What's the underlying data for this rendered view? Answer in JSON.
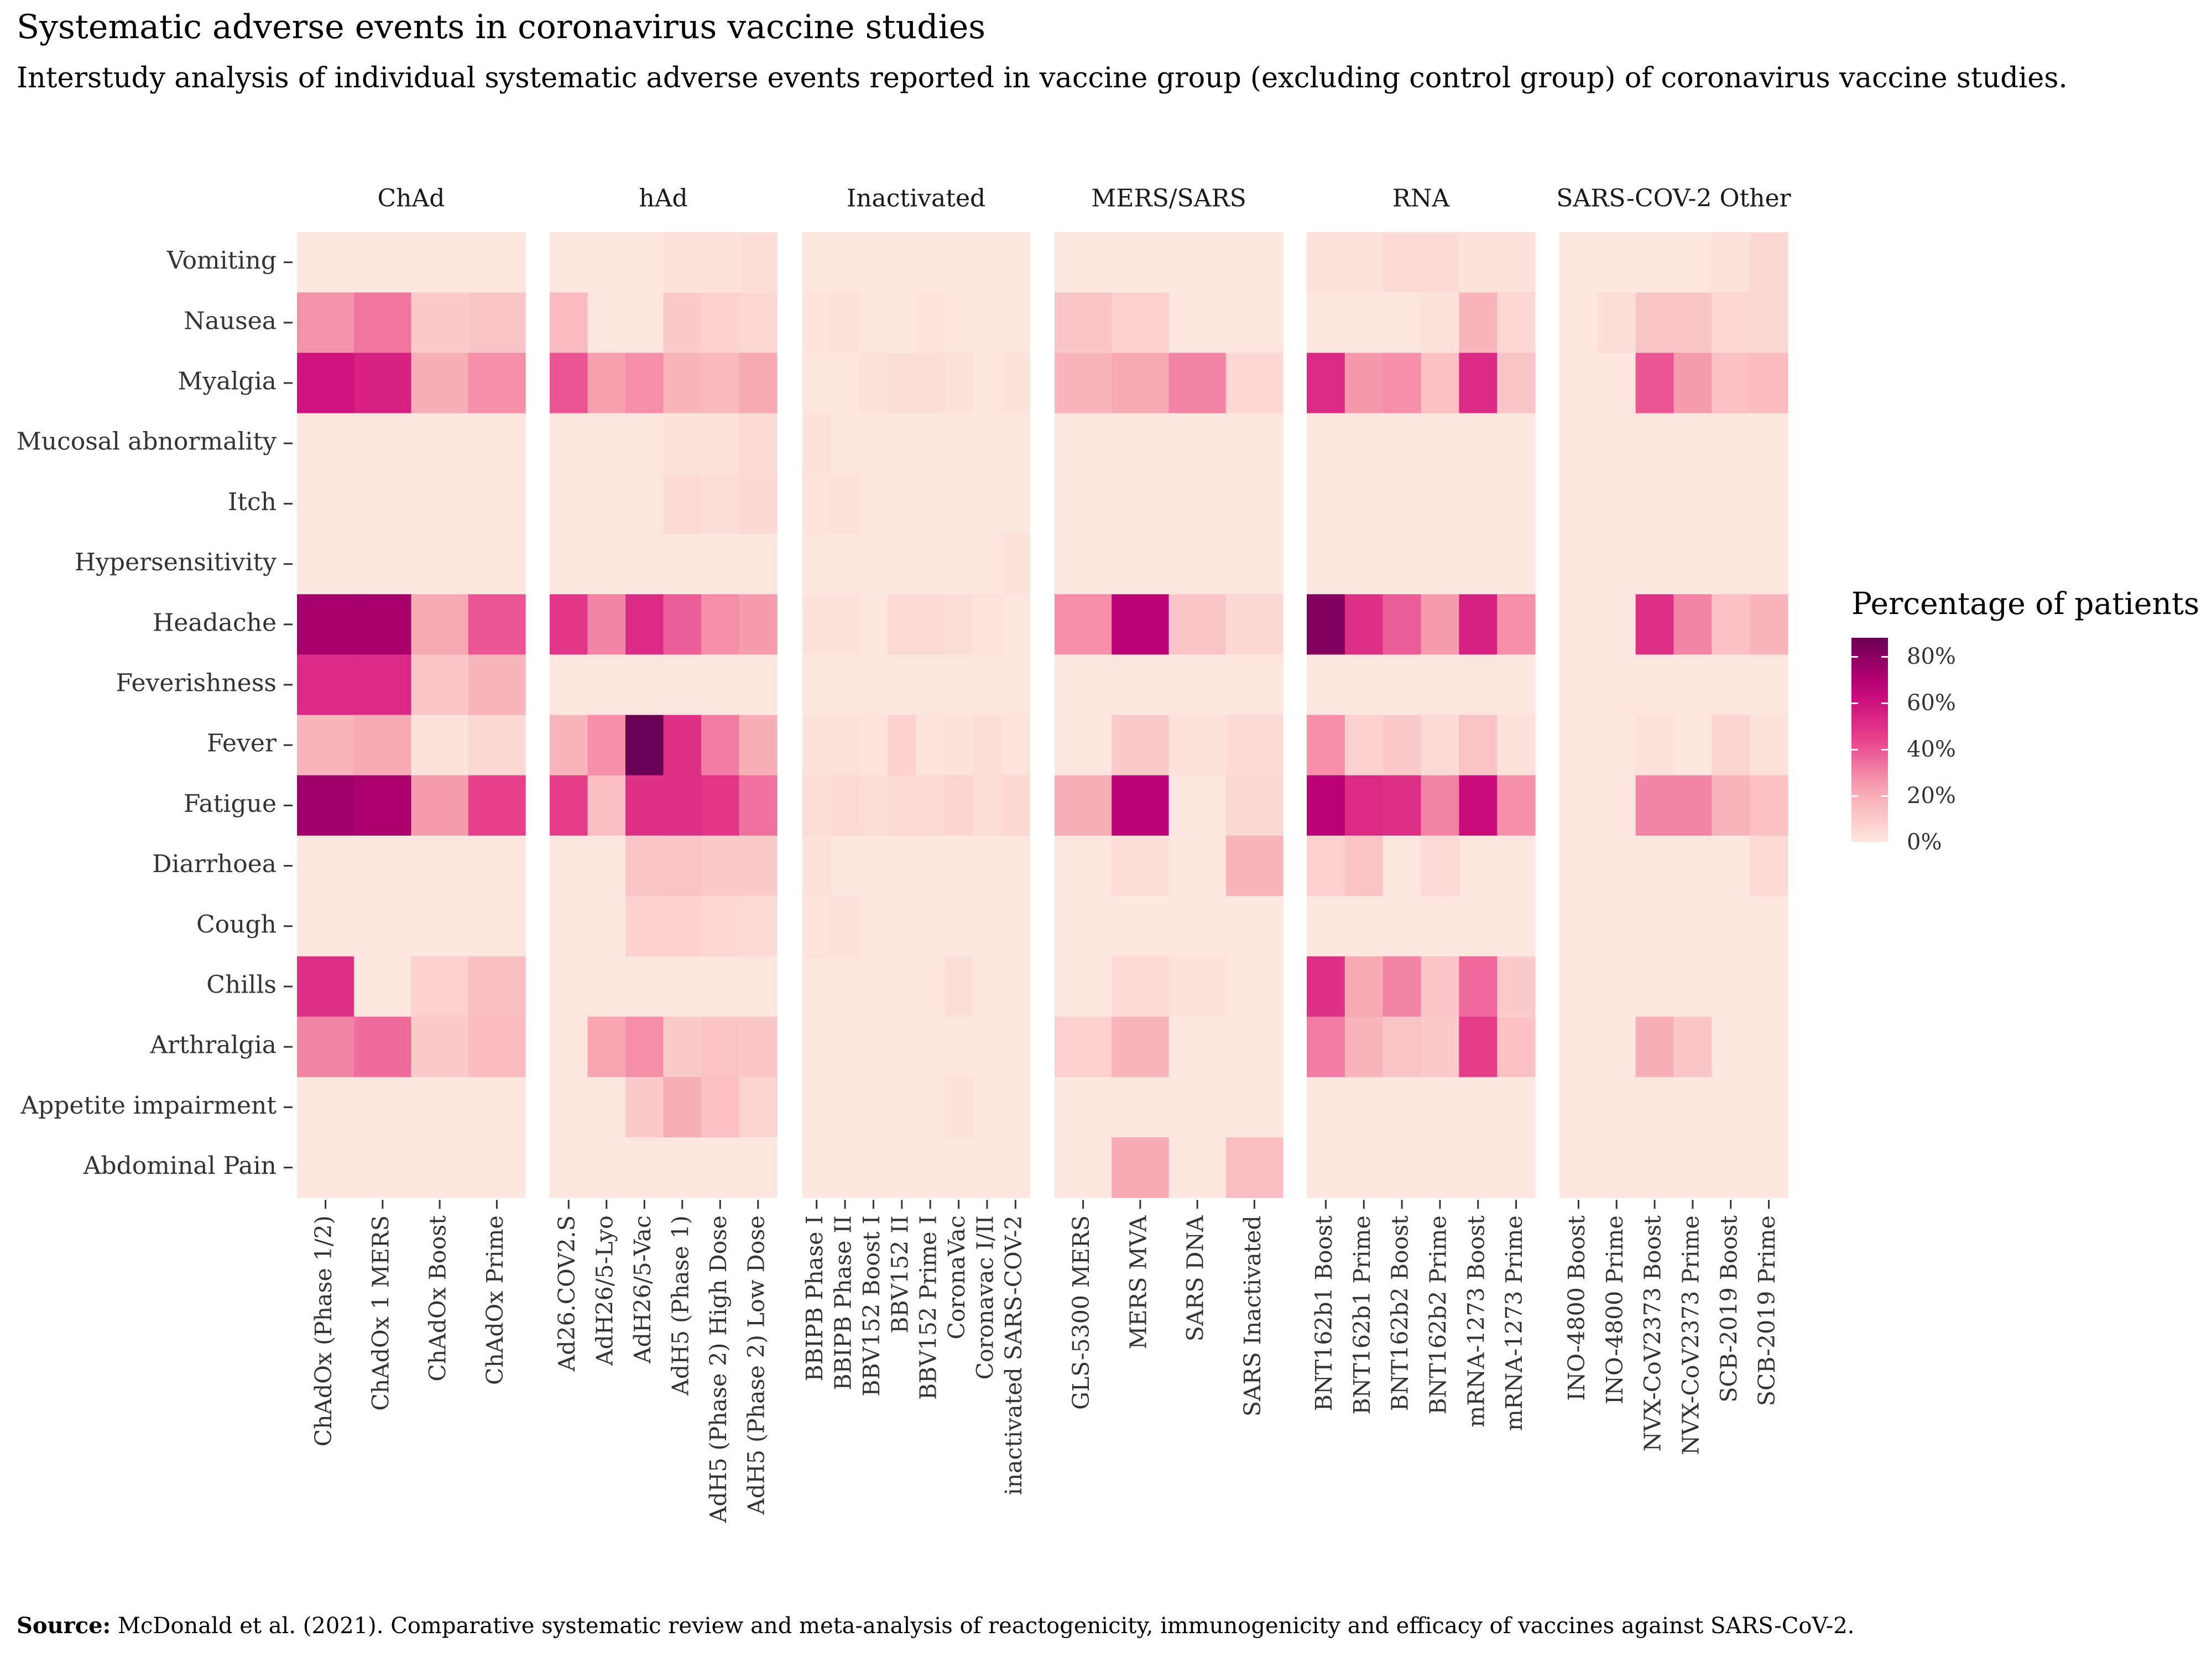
{
  "chart_data": {
    "type": "heatmap",
    "title": "Systematic adverse events in coronavirus vaccine studies",
    "subtitle": "Interstudy analysis of individual systematic adverse events reported in vaccine group (excluding control group) of coronavirus vaccine studies.",
    "source_label": "Source:",
    "source_text": "McDonald et al. (2021). Comparative systematic review and meta-analysis of reactogenicity, immunogenicity and efficacy of vaccines against SARS-CoV-2.",
    "legend": {
      "title": "Percentage of patients",
      "ticks": [
        0,
        20,
        40,
        60,
        80
      ],
      "tick_labels": [
        "0%",
        "20%",
        "40%",
        "60%",
        "80%"
      ],
      "range": [
        0,
        88
      ],
      "color_low": "#fde6df",
      "color_high": "#6a0055"
    },
    "events": [
      "Vomiting",
      "Nausea",
      "Myalgia",
      "Mucosal abnormality",
      "Itch",
      "Hypersensitivity",
      "Headache",
      "Feverishness",
      "Fever",
      "Fatigue",
      "Diarrhoea",
      "Cough",
      "Chills",
      "Arthralgia",
      "Appetite impairment",
      "Abdominal Pain"
    ],
    "panels": [
      {
        "name": "ChAd",
        "studies": [
          "ChAdOx (Phase 1/2)",
          "ChAdOx 1 MERS",
          "ChAdOx Boost",
          "ChAdOx Prime"
        ],
        "values": [
          [
            0,
            0,
            0,
            0
          ],
          [
            27,
            33,
            10,
            12
          ],
          [
            60,
            55,
            20,
            28
          ],
          [
            0,
            0,
            0,
            0
          ],
          [
            0,
            0,
            0,
            0
          ],
          [
            0,
            0,
            0,
            0
          ],
          [
            73,
            73,
            22,
            40
          ],
          [
            52,
            52,
            12,
            18
          ],
          [
            18,
            22,
            2,
            5
          ],
          [
            75,
            72,
            25,
            45
          ],
          [
            0,
            0,
            0,
            0
          ],
          [
            0,
            0,
            0,
            0
          ],
          [
            50,
            0,
            8,
            15
          ],
          [
            30,
            35,
            10,
            16
          ],
          [
            0,
            0,
            0,
            0
          ],
          [
            0,
            0,
            0,
            0
          ]
        ]
      },
      {
        "name": "hAd",
        "studies": [
          "Ad26.COV2.S",
          "AdH26/5-Lyo",
          "AdH26/5-Vac",
          "AdH5 (Phase 1)",
          "AdH5 (Phase 2) High Dose",
          "AdH5 (Phase 2) Low Dose"
        ],
        "values": [
          [
            0,
            0,
            0,
            2,
            2,
            3
          ],
          [
            16,
            0,
            0,
            10,
            8,
            6
          ],
          [
            40,
            24,
            28,
            18,
            17,
            22
          ],
          [
            0,
            0,
            0,
            2,
            2,
            4
          ],
          [
            0,
            0,
            0,
            4,
            3,
            5
          ],
          [
            0,
            0,
            0,
            0,
            0,
            0
          ],
          [
            48,
            30,
            52,
            38,
            28,
            25
          ],
          [
            0,
            0,
            0,
            0,
            0,
            0
          ],
          [
            18,
            28,
            88,
            50,
            32,
            20
          ],
          [
            46,
            15,
            50,
            50,
            48,
            34
          ],
          [
            0,
            0,
            12,
            13,
            10,
            10
          ],
          [
            0,
            0,
            8,
            8,
            6,
            4
          ],
          [
            0,
            0,
            0,
            0,
            0,
            0
          ],
          [
            0,
            23,
            28,
            10,
            13,
            11
          ],
          [
            0,
            0,
            10,
            20,
            14,
            7
          ],
          [
            0,
            0,
            0,
            0,
            0,
            0
          ]
        ]
      },
      {
        "name": "Inactivated",
        "studies": [
          "BBIPB Phase I",
          "BBIPB Phase II",
          "BBV152 Boost I",
          "BBV152 II",
          "BBV152 Prime I",
          "CoronaVac",
          "Coronavac I/II",
          "inactivated SARS-COV-2"
        ],
        "values": [
          [
            0,
            0,
            0,
            0,
            0,
            0,
            0,
            0
          ],
          [
            1,
            2,
            0,
            0,
            1,
            0,
            0,
            0
          ],
          [
            0,
            0,
            2,
            3,
            3,
            2,
            0,
            2
          ],
          [
            2,
            0,
            0,
            0,
            0,
            0,
            0,
            0
          ],
          [
            1,
            2,
            0,
            0,
            0,
            0,
            0,
            0
          ],
          [
            0,
            0,
            0,
            0,
            0,
            0,
            0,
            2
          ],
          [
            2,
            2,
            0,
            4,
            4,
            3,
            1,
            0
          ],
          [
            0,
            0,
            0,
            0,
            0,
            0,
            0,
            0
          ],
          [
            2,
            2,
            1,
            8,
            1,
            2,
            3,
            1
          ],
          [
            3,
            4,
            3,
            4,
            4,
            7,
            3,
            5
          ],
          [
            2,
            0,
            0,
            0,
            0,
            0,
            0,
            0
          ],
          [
            1,
            2,
            0,
            0,
            0,
            0,
            0,
            0
          ],
          [
            0,
            0,
            0,
            0,
            0,
            3,
            0,
            0
          ],
          [
            0,
            0,
            0,
            0,
            0,
            0,
            0,
            0
          ],
          [
            0,
            0,
            0,
            0,
            0,
            2,
            0,
            0
          ],
          [
            0,
            0,
            0,
            0,
            0,
            0,
            0,
            0
          ]
        ]
      },
      {
        "name": "MERS/SARS",
        "studies": [
          "GLS-5300 MERS",
          "MERS MVA",
          "SARS DNA",
          "SARS Inactivated"
        ],
        "values": [
          [
            0,
            0,
            0,
            0
          ],
          [
            12,
            8,
            0,
            0
          ],
          [
            18,
            22,
            30,
            6
          ],
          [
            0,
            0,
            0,
            0
          ],
          [
            0,
            0,
            0,
            0
          ],
          [
            0,
            0,
            0,
            0
          ],
          [
            28,
            68,
            12,
            5
          ],
          [
            0,
            0,
            0,
            0
          ],
          [
            0,
            10,
            2,
            4
          ],
          [
            20,
            68,
            0,
            5
          ],
          [
            0,
            3,
            0,
            18
          ],
          [
            0,
            0,
            0,
            0
          ],
          [
            0,
            4,
            2,
            0
          ],
          [
            8,
            18,
            0,
            0
          ],
          [
            0,
            0,
            0,
            0
          ],
          [
            0,
            22,
            0,
            15
          ]
        ]
      },
      {
        "name": "RNA",
        "studies": [
          "BNT162b1 Boost",
          "BNT162b1 Prime",
          "BNT162b2 Boost",
          "BNT162b2 Prime",
          "mRNA-1273 Boost",
          "mRNA-1273 Prime"
        ],
        "values": [
          [
            2,
            2,
            4,
            4,
            2,
            2
          ],
          [
            0,
            0,
            0,
            2,
            18,
            6
          ],
          [
            52,
            26,
            28,
            14,
            52,
            12
          ],
          [
            0,
            0,
            0,
            0,
            0,
            0
          ],
          [
            0,
            0,
            0,
            0,
            0,
            0
          ],
          [
            0,
            0,
            0,
            0,
            0,
            0
          ],
          [
            82,
            50,
            38,
            25,
            55,
            28
          ],
          [
            0,
            0,
            0,
            0,
            0,
            0
          ],
          [
            28,
            8,
            10,
            4,
            13,
            2
          ],
          [
            68,
            52,
            50,
            30,
            62,
            28
          ],
          [
            8,
            13,
            0,
            4,
            0,
            0
          ],
          [
            0,
            0,
            0,
            0,
            0,
            0
          ],
          [
            50,
            22,
            30,
            12,
            36,
            10
          ],
          [
            32,
            18,
            12,
            10,
            46,
            14
          ],
          [
            0,
            0,
            0,
            0,
            0,
            0
          ],
          [
            0,
            0,
            0,
            0,
            0,
            0
          ]
        ]
      },
      {
        "name": "SARS-COV-2 Other",
        "studies": [
          "INO-4800 Boost",
          "INO-4800 Prime",
          "NVX-CoV2373 Boost",
          "NVX-CoV2373 Prime",
          "SCB-2019 Boost",
          "SCB-2019 Prime"
        ],
        "values": [
          [
            0,
            0,
            0,
            0,
            2,
            5
          ],
          [
            0,
            3,
            12,
            12,
            6,
            5
          ],
          [
            0,
            0,
            40,
            25,
            14,
            16
          ],
          [
            0,
            0,
            0,
            0,
            0,
            0
          ],
          [
            0,
            0,
            0,
            0,
            0,
            0
          ],
          [
            0,
            0,
            0,
            0,
            0,
            0
          ],
          [
            0,
            0,
            50,
            30,
            14,
            18
          ],
          [
            0,
            0,
            0,
            0,
            0,
            0
          ],
          [
            0,
            0,
            2,
            0,
            7,
            2
          ],
          [
            0,
            0,
            30,
            30,
            18,
            14
          ],
          [
            0,
            0,
            0,
            0,
            0,
            4
          ],
          [
            0,
            0,
            0,
            0,
            0,
            0
          ],
          [
            0,
            0,
            0,
            0,
            0,
            0
          ],
          [
            0,
            0,
            20,
            12,
            0,
            0
          ],
          [
            0,
            0,
            0,
            0,
            0,
            0
          ],
          [
            0,
            0,
            0,
            0,
            0,
            0
          ]
        ]
      }
    ]
  }
}
